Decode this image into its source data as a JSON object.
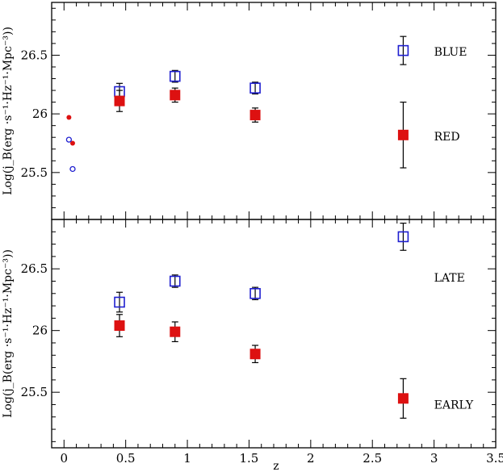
{
  "chart_data": {
    "type": "scatter",
    "x_label": "z",
    "x_range": [
      -0.1,
      3.5
    ],
    "x_ticks": [
      0,
      0.5,
      1,
      1.5,
      2,
      2.5,
      3,
      3.5
    ],
    "x_tick_labels": [
      "0",
      "0.5",
      "1",
      "1.5",
      "2",
      "2.5",
      "3",
      "3.5"
    ],
    "colors": {
      "blue": "#1f1fd0",
      "red": "#dd1111",
      "black": "#000000"
    },
    "panels": [
      {
        "y_label": "Log(j_B(erg ·s⁻¹·Hz⁻¹·Mpc⁻³))",
        "y_range": [
          25.1,
          26.95
        ],
        "y_ticks": [
          25.5,
          26,
          26.5
        ],
        "y_tick_labels": [
          "25.5",
          "26",
          "26.5"
        ],
        "series": [
          {
            "name": "BLUE",
            "marker": "open-square",
            "color": "#1f1fd0",
            "points": [
              {
                "x": 0.45,
                "y": 26.19,
                "err": 0.07
              },
              {
                "x": 0.9,
                "y": 26.32,
                "err": 0.05
              },
              {
                "x": 1.55,
                "y": 26.22,
                "err": 0.05
              },
              {
                "x": 2.75,
                "y": 26.54,
                "err": 0.12
              }
            ]
          },
          {
            "name": "RED",
            "marker": "filled-square",
            "color": "#dd1111",
            "points": [
              {
                "x": 0.45,
                "y": 26.11,
                "err": 0.09
              },
              {
                "x": 0.9,
                "y": 26.16,
                "err": 0.06
              },
              {
                "x": 1.55,
                "y": 25.99,
                "err": 0.06
              },
              {
                "x": 2.75,
                "y": 25.82,
                "err": 0.28
              }
            ]
          },
          {
            "name": "",
            "marker": "filled-circle",
            "color": "#dd1111",
            "points": [
              {
                "x": 0.04,
                "y": 25.97
              },
              {
                "x": 0.07,
                "y": 25.75
              }
            ]
          },
          {
            "name": "",
            "marker": "open-circle",
            "color": "#1f1fd0",
            "points": [
              {
                "x": 0.04,
                "y": 25.78
              },
              {
                "x": 0.07,
                "y": 25.53
              }
            ]
          }
        ],
        "annotations": [
          {
            "text": "BLUE",
            "x": 3.0,
            "y": 26.53
          },
          {
            "text": "RED",
            "x": 3.0,
            "y": 25.81
          }
        ]
      },
      {
        "y_label": "Log(j_B(erg ·s⁻¹·Hz⁻¹·Mpc⁻³))",
        "y_range": [
          25.05,
          26.9
        ],
        "y_ticks": [
          25.5,
          26,
          26.5
        ],
        "y_tick_labels": [
          "25.5",
          "26",
          "26.5"
        ],
        "series": [
          {
            "name": "LATE",
            "marker": "open-square",
            "color": "#1f1fd0",
            "points": [
              {
                "x": 0.45,
                "y": 26.23,
                "err": 0.08
              },
              {
                "x": 0.9,
                "y": 26.4,
                "err": 0.05
              },
              {
                "x": 1.55,
                "y": 26.3,
                "err": 0.05
              },
              {
                "x": 2.75,
                "y": 26.76,
                "err": 0.11
              }
            ]
          },
          {
            "name": "EARLY",
            "marker": "filled-square",
            "color": "#dd1111",
            "points": [
              {
                "x": 0.45,
                "y": 26.04,
                "err": 0.09
              },
              {
                "x": 0.9,
                "y": 25.99,
                "err": 0.08
              },
              {
                "x": 1.55,
                "y": 25.81,
                "err": 0.07
              },
              {
                "x": 2.75,
                "y": 25.45,
                "err": 0.16
              }
            ]
          }
        ],
        "annotations": [
          {
            "text": "LATE",
            "x": 3.0,
            "y": 26.43
          },
          {
            "text": "EARLY",
            "x": 3.0,
            "y": 25.4
          }
        ]
      }
    ]
  }
}
